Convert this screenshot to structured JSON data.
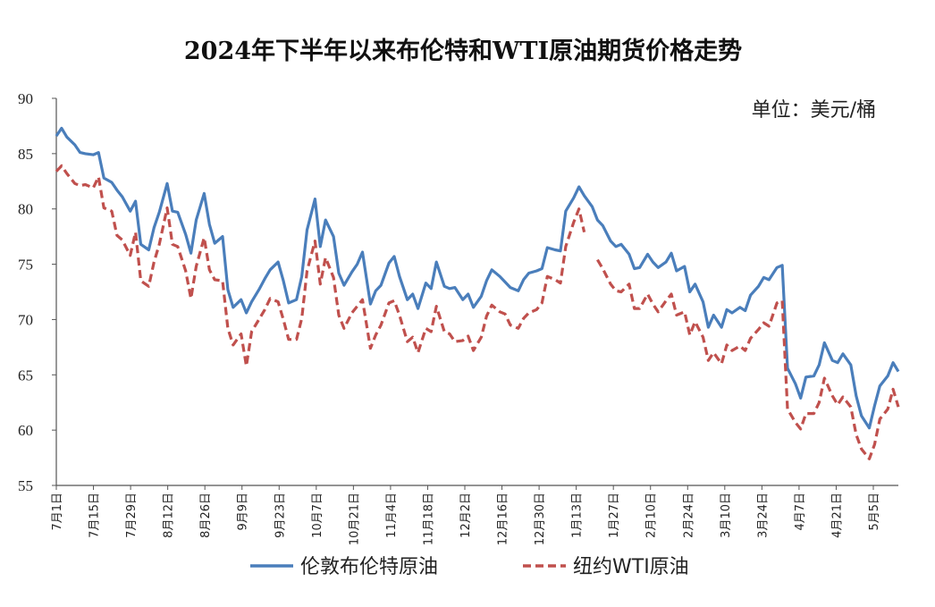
{
  "chart_data": {
    "type": "line",
    "title": "2024年下半年以来布伦特和WTI原油期货价格走势",
    "unit_label": "单位：美元/桶",
    "ylim": [
      55,
      90
    ],
    "yticks": [
      "55",
      "60",
      "65",
      "70",
      "75",
      "80",
      "85",
      "90"
    ],
    "x_ticks": [
      "7月1日",
      "7月15日",
      "7月29日",
      "8月12日",
      "8月26日",
      "9月9日",
      "9月23日",
      "10月7日",
      "10月21日",
      "11月4日",
      "11月18日",
      "12月2日",
      "12月16日",
      "12月30日",
      "1月13日",
      "1月27日",
      "2月10日",
      "2月24日",
      "3月10日",
      "3月24日",
      "4月7日",
      "4月21日",
      "5月5日"
    ],
    "x_range": [
      "2024-07-01",
      "2025-05-16"
    ],
    "legend_position": "bottom",
    "series": [
      {
        "name": "伦敦布伦特原油",
        "color": "#4a7ebb",
        "style": "solid",
        "points": [
          [
            "2024-07-01",
            86.6
          ],
          [
            "2024-07-03",
            87.3
          ],
          [
            "2024-07-05",
            86.5
          ],
          [
            "2024-07-08",
            85.8
          ],
          [
            "2024-07-10",
            85.1
          ],
          [
            "2024-07-12",
            85.0
          ],
          [
            "2024-07-15",
            84.9
          ],
          [
            "2024-07-17",
            85.1
          ],
          [
            "2024-07-19",
            82.8
          ],
          [
            "2024-07-22",
            82.4
          ],
          [
            "2024-07-24",
            81.7
          ],
          [
            "2024-07-26",
            81.1
          ],
          [
            "2024-07-29",
            79.8
          ],
          [
            "2024-07-31",
            80.7
          ],
          [
            "2024-08-02",
            76.8
          ],
          [
            "2024-08-05",
            76.3
          ],
          [
            "2024-08-07",
            78.3
          ],
          [
            "2024-08-09",
            79.7
          ],
          [
            "2024-08-12",
            82.3
          ],
          [
            "2024-08-14",
            79.8
          ],
          [
            "2024-08-16",
            79.7
          ],
          [
            "2024-08-19",
            77.7
          ],
          [
            "2024-08-21",
            76.0
          ],
          [
            "2024-08-23",
            79.0
          ],
          [
            "2024-08-26",
            81.4
          ],
          [
            "2024-08-28",
            78.6
          ],
          [
            "2024-08-30",
            76.9
          ],
          [
            "2024-09-02",
            77.5
          ],
          [
            "2024-09-04",
            72.7
          ],
          [
            "2024-09-06",
            71.1
          ],
          [
            "2024-09-09",
            71.8
          ],
          [
            "2024-09-11",
            70.6
          ],
          [
            "2024-09-13",
            71.6
          ],
          [
            "2024-09-16",
            72.8
          ],
          [
            "2024-09-18",
            73.7
          ],
          [
            "2024-09-20",
            74.5
          ],
          [
            "2024-09-23",
            75.2
          ],
          [
            "2024-09-25",
            73.5
          ],
          [
            "2024-09-27",
            71.5
          ],
          [
            "2024-09-30",
            71.8
          ],
          [
            "2024-10-02",
            73.9
          ],
          [
            "2024-10-04",
            78.1
          ],
          [
            "2024-10-07",
            80.9
          ],
          [
            "2024-10-09",
            76.6
          ],
          [
            "2024-10-11",
            79.0
          ],
          [
            "2024-10-14",
            77.5
          ],
          [
            "2024-10-16",
            74.2
          ],
          [
            "2024-10-18",
            73.1
          ],
          [
            "2024-10-21",
            74.3
          ],
          [
            "2024-10-23",
            75.0
          ],
          [
            "2024-10-25",
            76.1
          ],
          [
            "2024-10-28",
            71.4
          ],
          [
            "2024-10-30",
            72.6
          ],
          [
            "2024-11-01",
            73.1
          ],
          [
            "2024-11-04",
            75.1
          ],
          [
            "2024-11-06",
            75.7
          ],
          [
            "2024-11-08",
            73.9
          ],
          [
            "2024-11-11",
            71.8
          ],
          [
            "2024-11-13",
            72.3
          ],
          [
            "2024-11-15",
            71.0
          ],
          [
            "2024-11-18",
            73.3
          ],
          [
            "2024-11-20",
            72.8
          ],
          [
            "2024-11-22",
            75.2
          ],
          [
            "2024-11-25",
            73.0
          ],
          [
            "2024-11-27",
            72.8
          ],
          [
            "2024-11-29",
            72.9
          ],
          [
            "2024-12-02",
            71.8
          ],
          [
            "2024-12-04",
            72.3
          ],
          [
            "2024-12-06",
            71.1
          ],
          [
            "2024-12-09",
            72.1
          ],
          [
            "2024-12-11",
            73.5
          ],
          [
            "2024-12-13",
            74.5
          ],
          [
            "2024-12-16",
            73.9
          ],
          [
            "2024-12-18",
            73.4
          ],
          [
            "2024-12-20",
            72.9
          ],
          [
            "2024-12-23",
            72.6
          ],
          [
            "2024-12-25",
            73.6
          ],
          [
            "2024-12-27",
            74.2
          ],
          [
            "2024-12-30",
            74.4
          ],
          [
            "2025-01-01",
            74.6
          ],
          [
            "2025-01-03",
            76.5
          ],
          [
            "2025-01-06",
            76.3
          ],
          [
            "2025-01-08",
            76.2
          ],
          [
            "2025-01-10",
            79.8
          ],
          [
            "2025-01-13",
            81.0
          ],
          [
            "2025-01-15",
            82.0
          ],
          [
            "2025-01-17",
            81.2
          ],
          [
            "2025-01-20",
            80.2
          ],
          [
            "2025-01-22",
            79.0
          ],
          [
            "2025-01-24",
            78.5
          ],
          [
            "2025-01-27",
            77.1
          ],
          [
            "2025-01-29",
            76.6
          ],
          [
            "2025-01-31",
            76.8
          ],
          [
            "2025-02-03",
            75.9
          ],
          [
            "2025-02-05",
            74.6
          ],
          [
            "2025-02-07",
            74.7
          ],
          [
            "2025-02-10",
            75.9
          ],
          [
            "2025-02-12",
            75.2
          ],
          [
            "2025-02-14",
            74.7
          ],
          [
            "2025-02-17",
            75.2
          ],
          [
            "2025-02-19",
            76.0
          ],
          [
            "2025-02-21",
            74.4
          ],
          [
            "2025-02-24",
            74.8
          ],
          [
            "2025-02-26",
            72.5
          ],
          [
            "2025-02-28",
            73.2
          ],
          [
            "2025-03-03",
            71.6
          ],
          [
            "2025-03-05",
            69.3
          ],
          [
            "2025-03-07",
            70.4
          ],
          [
            "2025-03-10",
            69.3
          ],
          [
            "2025-03-12",
            70.9
          ],
          [
            "2025-03-14",
            70.6
          ],
          [
            "2025-03-17",
            71.1
          ],
          [
            "2025-03-19",
            70.8
          ],
          [
            "2025-03-21",
            72.2
          ],
          [
            "2025-03-24",
            73.0
          ],
          [
            "2025-03-26",
            73.8
          ],
          [
            "2025-03-28",
            73.6
          ],
          [
            "2025-03-31",
            74.7
          ],
          [
            "2025-04-02",
            74.9
          ],
          [
            "2025-04-04",
            65.6
          ],
          [
            "2025-04-07",
            64.2
          ],
          [
            "2025-04-09",
            62.9
          ],
          [
            "2025-04-11",
            64.8
          ],
          [
            "2025-04-14",
            64.9
          ],
          [
            "2025-04-16",
            65.9
          ],
          [
            "2025-04-18",
            67.9
          ],
          [
            "2025-04-21",
            66.3
          ],
          [
            "2025-04-23",
            66.1
          ],
          [
            "2025-04-25",
            66.9
          ],
          [
            "2025-04-28",
            65.9
          ],
          [
            "2025-04-30",
            63.1
          ],
          [
            "2025-05-02",
            61.3
          ],
          [
            "2025-05-05",
            60.2
          ],
          [
            "2025-05-07",
            62.2
          ],
          [
            "2025-05-09",
            64.0
          ],
          [
            "2025-05-12",
            64.9
          ],
          [
            "2025-05-14",
            66.1
          ],
          [
            "2025-05-16",
            65.3
          ]
        ]
      },
      {
        "name": "纽约WTI原油",
        "color": "#c0504d",
        "style": "dashed",
        "points": [
          [
            "2024-07-01",
            83.4
          ],
          [
            "2024-07-03",
            83.9
          ],
          [
            "2024-07-05",
            83.2
          ],
          [
            "2024-07-08",
            82.3
          ],
          [
            "2024-07-10",
            82.1
          ],
          [
            "2024-07-12",
            82.2
          ],
          [
            "2024-07-15",
            81.9
          ],
          [
            "2024-07-17",
            82.9
          ],
          [
            "2024-07-19",
            80.1
          ],
          [
            "2024-07-22",
            79.8
          ],
          [
            "2024-07-24",
            77.6
          ],
          [
            "2024-07-26",
            77.2
          ],
          [
            "2024-07-29",
            75.8
          ],
          [
            "2024-07-31",
            77.9
          ],
          [
            "2024-08-02",
            73.5
          ],
          [
            "2024-08-05",
            73.0
          ],
          [
            "2024-08-07",
            75.2
          ],
          [
            "2024-08-09",
            76.8
          ],
          [
            "2024-08-12",
            80.1
          ],
          [
            "2024-08-14",
            76.8
          ],
          [
            "2024-08-16",
            76.6
          ],
          [
            "2024-08-19",
            74.4
          ],
          [
            "2024-08-21",
            71.9
          ],
          [
            "2024-08-23",
            74.8
          ],
          [
            "2024-08-26",
            77.4
          ],
          [
            "2024-08-28",
            74.5
          ],
          [
            "2024-08-30",
            73.6
          ],
          [
            "2024-09-02",
            73.5
          ],
          [
            "2024-09-04",
            69.2
          ],
          [
            "2024-09-06",
            67.7
          ],
          [
            "2024-09-09",
            68.7
          ],
          [
            "2024-09-11",
            65.8
          ],
          [
            "2024-09-13",
            68.9
          ],
          [
            "2024-09-16",
            70.1
          ],
          [
            "2024-09-18",
            70.9
          ],
          [
            "2024-09-20",
            71.9
          ],
          [
            "2024-09-23",
            71.6
          ],
          [
            "2024-09-25",
            70.0
          ],
          [
            "2024-09-27",
            68.2
          ],
          [
            "2024-09-30",
            68.2
          ],
          [
            "2024-10-02",
            70.1
          ],
          [
            "2024-10-04",
            74.4
          ],
          [
            "2024-10-07",
            77.1
          ],
          [
            "2024-10-09",
            73.2
          ],
          [
            "2024-10-11",
            75.6
          ],
          [
            "2024-10-14",
            73.8
          ],
          [
            "2024-10-16",
            70.4
          ],
          [
            "2024-10-18",
            69.2
          ],
          [
            "2024-10-21",
            70.6
          ],
          [
            "2024-10-23",
            71.2
          ],
          [
            "2024-10-25",
            71.8
          ],
          [
            "2024-10-28",
            67.4
          ],
          [
            "2024-10-30",
            68.6
          ],
          [
            "2024-11-01",
            69.5
          ],
          [
            "2024-11-04",
            71.5
          ],
          [
            "2024-11-06",
            71.7
          ],
          [
            "2024-11-08",
            70.4
          ],
          [
            "2024-11-11",
            68.0
          ],
          [
            "2024-11-13",
            68.4
          ],
          [
            "2024-11-15",
            67.0
          ],
          [
            "2024-11-18",
            69.2
          ],
          [
            "2024-11-20",
            68.9
          ],
          [
            "2024-11-22",
            71.2
          ],
          [
            "2024-11-25",
            68.9
          ],
          [
            "2024-11-27",
            68.7
          ],
          [
            "2024-11-29",
            68.0
          ],
          [
            "2024-12-02",
            68.1
          ],
          [
            "2024-12-04",
            68.5
          ],
          [
            "2024-12-06",
            67.2
          ],
          [
            "2024-12-09",
            68.4
          ],
          [
            "2024-12-11",
            70.3
          ],
          [
            "2024-12-13",
            71.3
          ],
          [
            "2024-12-16",
            70.7
          ],
          [
            "2024-12-18",
            70.5
          ],
          [
            "2024-12-20",
            69.5
          ],
          [
            "2024-12-23",
            69.2
          ],
          [
            "2024-12-25",
            70.1
          ],
          [
            "2024-12-27",
            70.6
          ],
          [
            "2024-12-30",
            70.9
          ],
          [
            "2025-01-01",
            71.5
          ],
          [
            "2025-01-03",
            73.9
          ],
          [
            "2025-01-06",
            73.6
          ],
          [
            "2025-01-08",
            73.3
          ],
          [
            "2025-01-10",
            76.6
          ],
          [
            "2025-01-13",
            78.8
          ],
          [
            "2025-01-15",
            80.0
          ],
          [
            "2025-01-17",
            77.9
          ]
        ],
        "points_after_gap": [
          [
            "2025-01-22",
            75.4
          ],
          [
            "2025-01-24",
            74.6
          ],
          [
            "2025-01-27",
            73.2
          ],
          [
            "2025-01-29",
            72.6
          ],
          [
            "2025-01-31",
            72.5
          ],
          [
            "2025-02-03",
            73.2
          ],
          [
            "2025-02-05",
            71.0
          ],
          [
            "2025-02-07",
            71.0
          ],
          [
            "2025-02-10",
            72.3
          ],
          [
            "2025-02-12",
            71.4
          ],
          [
            "2025-02-14",
            70.7
          ],
          [
            "2025-02-17",
            71.7
          ],
          [
            "2025-02-19",
            72.3
          ],
          [
            "2025-02-21",
            70.4
          ],
          [
            "2025-02-24",
            70.7
          ],
          [
            "2025-02-26",
            68.6
          ],
          [
            "2025-02-28",
            69.8
          ],
          [
            "2025-03-03",
            68.4
          ],
          [
            "2025-03-05",
            66.3
          ],
          [
            "2025-03-07",
            67.0
          ],
          [
            "2025-03-10",
            66.0
          ],
          [
            "2025-03-12",
            67.7
          ],
          [
            "2025-03-14",
            67.2
          ],
          [
            "2025-03-17",
            67.6
          ],
          [
            "2025-03-19",
            67.2
          ],
          [
            "2025-03-21",
            68.3
          ],
          [
            "2025-03-24",
            69.1
          ],
          [
            "2025-03-26",
            69.7
          ],
          [
            "2025-03-28",
            69.4
          ],
          [
            "2025-03-31",
            71.5
          ],
          [
            "2025-04-02",
            71.7
          ],
          [
            "2025-04-04",
            61.9
          ],
          [
            "2025-04-07",
            60.7
          ],
          [
            "2025-04-09",
            60.1
          ],
          [
            "2025-04-11",
            61.5
          ],
          [
            "2025-04-14",
            61.5
          ],
          [
            "2025-04-16",
            62.5
          ],
          [
            "2025-04-18",
            64.7
          ],
          [
            "2025-04-21",
            63.1
          ],
          [
            "2025-04-23",
            62.3
          ],
          [
            "2025-04-25",
            63.0
          ],
          [
            "2025-04-28",
            62.1
          ],
          [
            "2025-04-30",
            59.6
          ],
          [
            "2025-05-02",
            58.3
          ],
          [
            "2025-05-05",
            57.4
          ],
          [
            "2025-05-07",
            58.7
          ],
          [
            "2025-05-09",
            61.0
          ],
          [
            "2025-05-12",
            61.9
          ],
          [
            "2025-05-14",
            63.7
          ],
          [
            "2025-05-16",
            62.1
          ]
        ]
      }
    ]
  }
}
